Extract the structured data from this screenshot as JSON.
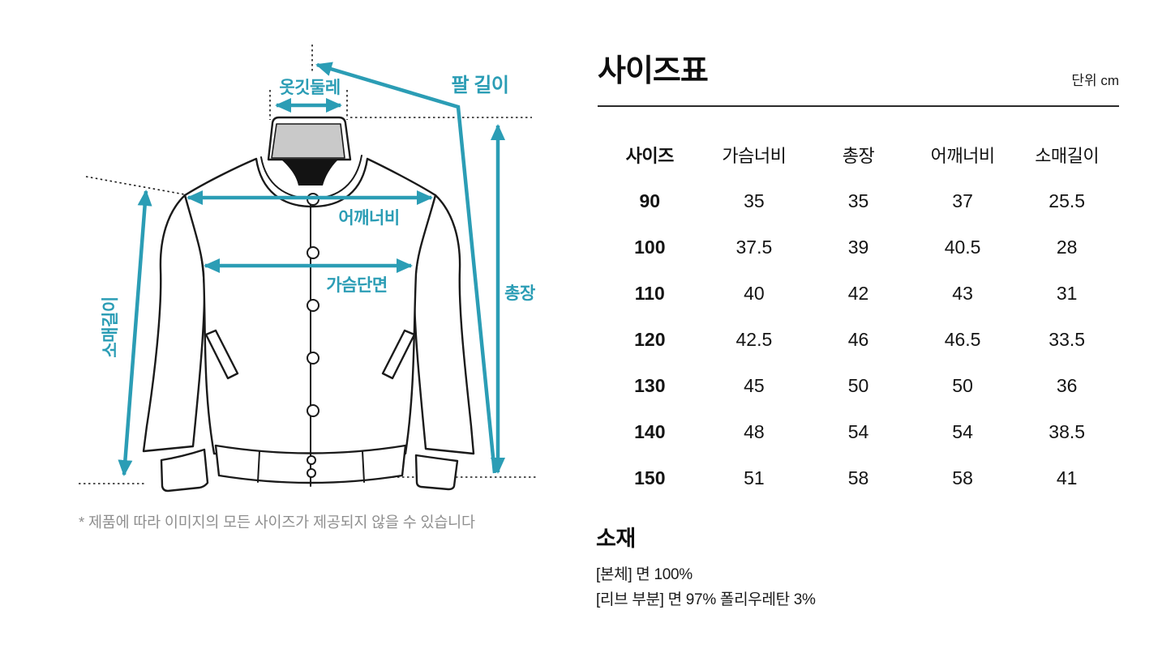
{
  "diagram": {
    "accent_color": "#2b9db5",
    "labels": {
      "collar": "옷깃둘레",
      "arm": "팔 길이",
      "shoulder": "어깨너비",
      "chest": "가슴단면",
      "sleeve": "소매길이",
      "total_length": "총장"
    },
    "note": "* 제품에 따라 이미지의 모든 사이즈가 제공되지 않을 수 있습니다"
  },
  "size_table": {
    "title": "사이즈표",
    "unit": "단위 cm",
    "columns": [
      "사이즈",
      "가슴너비",
      "총장",
      "어깨너비",
      "소매길이"
    ],
    "rows": [
      {
        "size": "90",
        "values": [
          "35",
          "35",
          "37",
          "25.5"
        ]
      },
      {
        "size": "100",
        "values": [
          "37.5",
          "39",
          "40.5",
          "28"
        ]
      },
      {
        "size": "110",
        "values": [
          "40",
          "42",
          "43",
          "31"
        ]
      },
      {
        "size": "120",
        "values": [
          "42.5",
          "46",
          "46.5",
          "33.5"
        ]
      },
      {
        "size": "130",
        "values": [
          "45",
          "50",
          "50",
          "36"
        ]
      },
      {
        "size": "140",
        "values": [
          "48",
          "54",
          "54",
          "38.5"
        ]
      },
      {
        "size": "150",
        "values": [
          "51",
          "58",
          "58",
          "41"
        ]
      }
    ]
  },
  "material": {
    "title": "소재",
    "lines": [
      "[본체] 면 100%",
      "[리브 부분] 면 97% 폴리우레탄 3%"
    ]
  }
}
